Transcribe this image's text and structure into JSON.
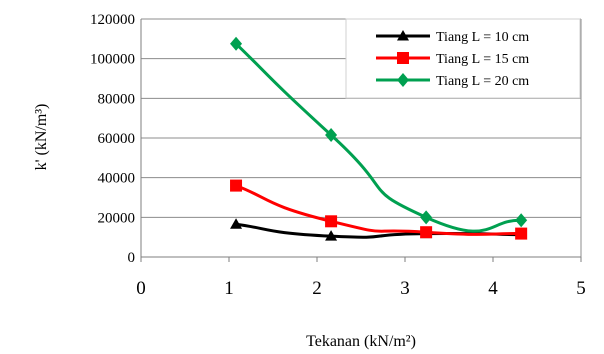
{
  "chart_data": {
    "type": "line",
    "xlabel": "Tekanan (kN/m²)",
    "ylabel": "k' (kN/m³)",
    "xlim": [
      0,
      5
    ],
    "ylim": [
      0,
      120000
    ],
    "x_ticks": [
      "0",
      "1",
      "2",
      "3",
      "4",
      "5"
    ],
    "y_ticks": [
      "0",
      "20000",
      "40000",
      "60000",
      "80000",
      "100000",
      "120000"
    ],
    "grid": "horizontal",
    "legend_position": "top-right",
    "series": [
      {
        "name": "Tiang L = 10 cm",
        "color": "#000000",
        "marker": "triangle",
        "x": [
          1.08,
          2.16,
          3.24,
          4.32
        ],
        "y": [
          16500,
          10500,
          11800,
          11200
        ]
      },
      {
        "name": "Tiang L = 15 cm",
        "color": "#ff0000",
        "marker": "square",
        "x": [
          1.08,
          2.16,
          3.24,
          4.32
        ],
        "y": [
          36000,
          18000,
          12500,
          11800
        ]
      },
      {
        "name": "Tiang L = 20 cm",
        "color": "#00a050",
        "marker": "diamond",
        "x": [
          1.08,
          2.16,
          3.24,
          4.32
        ],
        "y": [
          107500,
          61500,
          20000,
          18500
        ]
      }
    ]
  }
}
